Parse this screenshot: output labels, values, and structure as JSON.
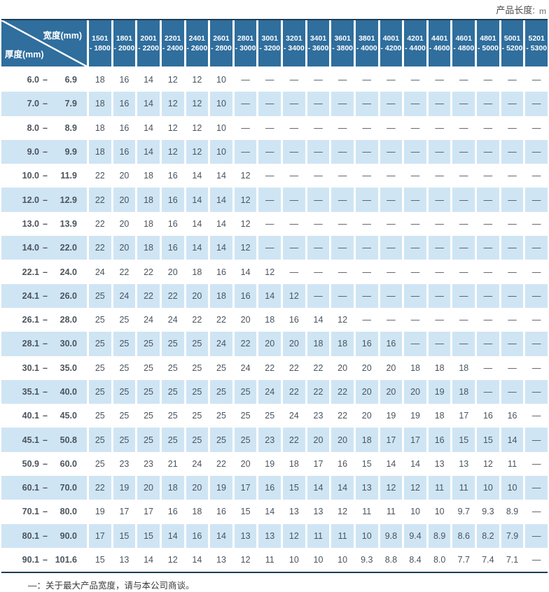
{
  "meta": {
    "product_length_label": "产品长度:",
    "product_length_unit": "m"
  },
  "colors": {
    "header_blue": "#2f6e9d",
    "row_blue": "#cfe5f4",
    "border_navy": "#1d3d55",
    "label_text": "#1d3b58",
    "value_text": "#4a545e",
    "header_text": "#ffffff",
    "footnote_text": "#3a3a3a",
    "note_text": "#4a4a4a"
  },
  "table": {
    "corner": {
      "top": "宽度(mm)",
      "bottom": "厚度(mm)"
    },
    "range_dash": "–",
    "width_columns": [
      {
        "line1": "1501",
        "line2": "- 1800"
      },
      {
        "line1": "1801",
        "line2": "- 2000"
      },
      {
        "line1": "2001",
        "line2": "- 2200"
      },
      {
        "line1": "2201",
        "line2": "- 2400"
      },
      {
        "line1": "2401",
        "line2": "- 2600"
      },
      {
        "line1": "2601",
        "line2": "- 2800"
      },
      {
        "line1": "2801",
        "line2": "- 3000"
      },
      {
        "line1": "3001",
        "line2": "- 3200"
      },
      {
        "line1": "3201",
        "line2": "- 3400"
      },
      {
        "line1": "3401",
        "line2": "- 3600"
      },
      {
        "line1": "3601",
        "line2": "- 3800"
      },
      {
        "line1": "3801",
        "line2": "- 4000"
      },
      {
        "line1": "4001",
        "line2": "- 4200"
      },
      {
        "line1": "4201",
        "line2": "- 4400"
      },
      {
        "line1": "4401",
        "line2": "- 4600"
      },
      {
        "line1": "4601",
        "line2": "- 4800"
      },
      {
        "line1": "4801",
        "line2": "- 5000"
      },
      {
        "line1": "5001",
        "line2": "- 5200"
      },
      {
        "line1": "5201",
        "line2": "- 5300"
      }
    ],
    "rows": [
      {
        "from": "6.0",
        "to": "6.9",
        "values": [
          "18",
          "16",
          "14",
          "12",
          "12",
          "10",
          "—",
          "—",
          "—",
          "—",
          "—",
          "—",
          "—",
          "—",
          "—",
          "—",
          "—",
          "—",
          "—"
        ]
      },
      {
        "from": "7.0",
        "to": "7.9",
        "values": [
          "18",
          "16",
          "14",
          "12",
          "12",
          "10",
          "—",
          "—",
          "—",
          "—",
          "—",
          "—",
          "—",
          "—",
          "—",
          "—",
          "—",
          "—",
          "—"
        ]
      },
      {
        "from": "8.0",
        "to": "8.9",
        "values": [
          "18",
          "16",
          "14",
          "12",
          "12",
          "10",
          "—",
          "—",
          "—",
          "—",
          "—",
          "—",
          "—",
          "—",
          "—",
          "—",
          "—",
          "—",
          "—"
        ]
      },
      {
        "from": "9.0",
        "to": "9.9",
        "values": [
          "18",
          "16",
          "14",
          "12",
          "12",
          "10",
          "—",
          "—",
          "—",
          "—",
          "—",
          "—",
          "—",
          "—",
          "—",
          "—",
          "—",
          "—",
          "—"
        ]
      },
      {
        "from": "10.0",
        "to": "11.9",
        "values": [
          "22",
          "20",
          "18",
          "16",
          "14",
          "14",
          "12",
          "—",
          "—",
          "—",
          "—",
          "—",
          "—",
          "—",
          "—",
          "—",
          "—",
          "—",
          "—"
        ]
      },
      {
        "from": "12.0",
        "to": "12.9",
        "values": [
          "22",
          "20",
          "18",
          "16",
          "14",
          "14",
          "12",
          "—",
          "—",
          "—",
          "—",
          "—",
          "—",
          "—",
          "—",
          "—",
          "—",
          "—",
          "—"
        ]
      },
      {
        "from": "13.0",
        "to": "13.9",
        "values": [
          "22",
          "20",
          "18",
          "16",
          "14",
          "14",
          "12",
          "—",
          "—",
          "—",
          "—",
          "—",
          "—",
          "—",
          "—",
          "—",
          "—",
          "—",
          "—"
        ]
      },
      {
        "from": "14.0",
        "to": "22.0",
        "values": [
          "22",
          "20",
          "18",
          "16",
          "14",
          "14",
          "12",
          "—",
          "—",
          "—",
          "—",
          "—",
          "—",
          "—",
          "—",
          "—",
          "—",
          "—",
          "—"
        ]
      },
      {
        "from": "22.1",
        "to": "24.0",
        "values": [
          "24",
          "22",
          "22",
          "20",
          "18",
          "16",
          "14",
          "12",
          "—",
          "—",
          "—",
          "—",
          "—",
          "—",
          "—",
          "—",
          "—",
          "—",
          "—"
        ]
      },
      {
        "from": "24.1",
        "to": "26.0",
        "values": [
          "25",
          "24",
          "22",
          "22",
          "20",
          "18",
          "16",
          "14",
          "12",
          "—",
          "—",
          "—",
          "—",
          "—",
          "—",
          "—",
          "—",
          "—",
          "—"
        ]
      },
      {
        "from": "26.1",
        "to": "28.0",
        "values": [
          "25",
          "25",
          "24",
          "24",
          "22",
          "22",
          "20",
          "18",
          "16",
          "14",
          "12",
          "—",
          "—",
          "—",
          "—",
          "—",
          "—",
          "—",
          "—"
        ]
      },
      {
        "from": "28.1",
        "to": "30.0",
        "values": [
          "25",
          "25",
          "25",
          "25",
          "25",
          "24",
          "22",
          "20",
          "20",
          "18",
          "18",
          "16",
          "16",
          "—",
          "—",
          "—",
          "—",
          "—",
          "—"
        ]
      },
      {
        "from": "30.1",
        "to": "35.0",
        "values": [
          "25",
          "25",
          "25",
          "25",
          "25",
          "25",
          "24",
          "22",
          "22",
          "22",
          "20",
          "20",
          "20",
          "18",
          "18",
          "18",
          "—",
          "—",
          "—"
        ]
      },
      {
        "from": "35.1",
        "to": "40.0",
        "values": [
          "25",
          "25",
          "25",
          "25",
          "25",
          "25",
          "25",
          "24",
          "22",
          "22",
          "22",
          "20",
          "20",
          "20",
          "19",
          "18",
          "—",
          "—",
          "—"
        ]
      },
      {
        "from": "40.1",
        "to": "45.0",
        "values": [
          "25",
          "25",
          "25",
          "25",
          "25",
          "25",
          "25",
          "25",
          "24",
          "23",
          "22",
          "20",
          "19",
          "19",
          "18",
          "17",
          "16",
          "16",
          "—"
        ]
      },
      {
        "from": "45.1",
        "to": "50.8",
        "values": [
          "25",
          "25",
          "25",
          "25",
          "25",
          "25",
          "25",
          "23",
          "22",
          "20",
          "20",
          "18",
          "17",
          "17",
          "16",
          "15",
          "15",
          "14",
          "—"
        ]
      },
      {
        "from": "50.9",
        "to": "60.0",
        "values": [
          "25",
          "23",
          "23",
          "21",
          "24",
          "22",
          "20",
          "19",
          "18",
          "17",
          "16",
          "15",
          "14",
          "14",
          "13",
          "13",
          "12",
          "11",
          "—"
        ]
      },
      {
        "from": "60.1",
        "to": "70.0",
        "values": [
          "22",
          "19",
          "20",
          "18",
          "20",
          "19",
          "17",
          "16",
          "15",
          "14",
          "14",
          "13",
          "12",
          "12",
          "11",
          "11",
          "10",
          "10",
          "—"
        ]
      },
      {
        "from": "70.1",
        "to": "80.0",
        "values": [
          "19",
          "17",
          "17",
          "16",
          "18",
          "16",
          "15",
          "14",
          "13",
          "13",
          "12",
          "11",
          "11",
          "10",
          "10",
          "9.7",
          "9.3",
          "8.9",
          "—"
        ]
      },
      {
        "from": "80.1",
        "to": "90.0",
        "values": [
          "17",
          "15",
          "15",
          "14",
          "16",
          "14",
          "13",
          "13",
          "12",
          "11",
          "11",
          "10",
          "9.8",
          "9.4",
          "8.9",
          "8.6",
          "8.2",
          "7.9",
          "—"
        ]
      },
      {
        "from": "90.1",
        "to": "101.6",
        "values": [
          "15",
          "13",
          "14",
          "12",
          "14",
          "13",
          "12",
          "11",
          "10",
          "10",
          "10",
          "9.3",
          "8.8",
          "8.4",
          "8.0",
          "7.7",
          "7.4",
          "7.1",
          "—"
        ]
      }
    ]
  },
  "footnote": "—：关于最大产品宽度，请与本公司商谈。"
}
